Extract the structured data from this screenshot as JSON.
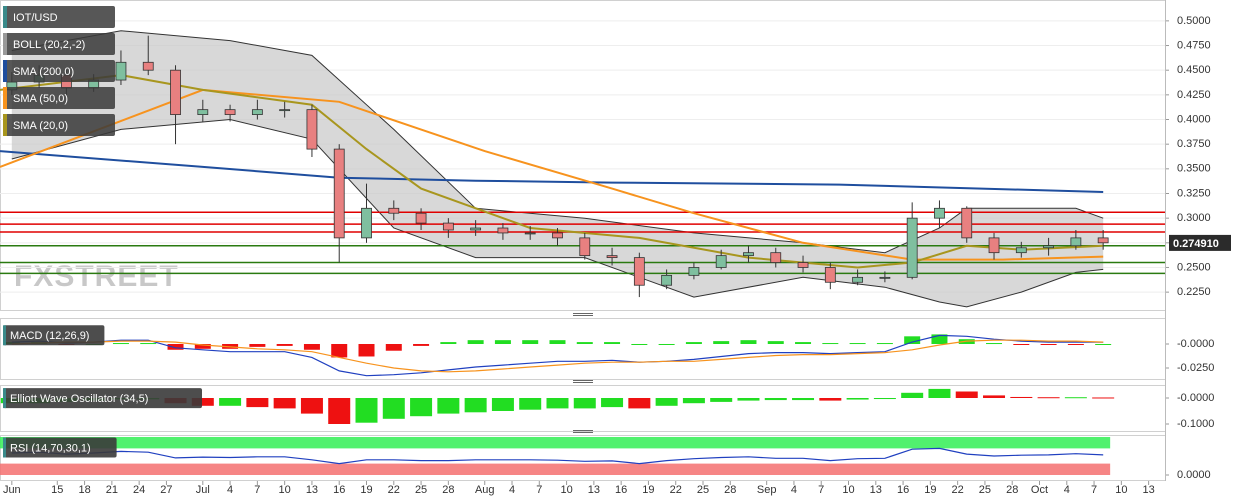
{
  "watermark": "FXSTREET",
  "chart_data": [
    {
      "type": "candlestick",
      "xlim": [
        7.7,
        135.8
      ],
      "xticks": [
        {
          "value": 9,
          "label": "Jun"
        },
        {
          "value": 14,
          "label": "15"
        },
        {
          "value": 17,
          "label": "18"
        },
        {
          "value": 20,
          "label": "21"
        },
        {
          "value": 23,
          "label": "24"
        },
        {
          "value": 26,
          "label": "27"
        },
        {
          "value": 30,
          "label": "Jul"
        },
        {
          "value": 33,
          "label": "4"
        },
        {
          "value": 36,
          "label": "7"
        },
        {
          "value": 39,
          "label": "10"
        },
        {
          "value": 42,
          "label": "13"
        },
        {
          "value": 45,
          "label": "16"
        },
        {
          "value": 48,
          "label": "19"
        },
        {
          "value": 51,
          "label": "22"
        },
        {
          "value": 54,
          "label": "25"
        },
        {
          "value": 57,
          "label": "28"
        },
        {
          "value": 61,
          "label": "Aug"
        },
        {
          "value": 64,
          "label": "4"
        },
        {
          "value": 67,
          "label": "7"
        },
        {
          "value": 70,
          "label": "10"
        },
        {
          "value": 73,
          "label": "13"
        },
        {
          "value": 76,
          "label": "16"
        },
        {
          "value": 79,
          "label": "19"
        },
        {
          "value": 82,
          "label": "22"
        },
        {
          "value": 85,
          "label": "25"
        },
        {
          "value": 88,
          "label": "28"
        },
        {
          "value": 92,
          "label": "Sep"
        },
        {
          "value": 95,
          "label": "4"
        },
        {
          "value": 98,
          "label": "7"
        },
        {
          "value": 101,
          "label": "10"
        },
        {
          "value": 104,
          "label": "13"
        },
        {
          "value": 107,
          "label": "16"
        },
        {
          "value": 110,
          "label": "19"
        },
        {
          "value": 113,
          "label": "22"
        },
        {
          "value": 116,
          "label": "25"
        },
        {
          "value": 119,
          "label": "28"
        },
        {
          "value": 122,
          "label": "Oct"
        },
        {
          "value": 125,
          "label": "4"
        },
        {
          "value": 128,
          "label": "7"
        },
        {
          "value": 131,
          "label": "10"
        },
        {
          "value": 134,
          "label": "13"
        }
      ],
      "ylim": [
        0.215,
        0.51
      ],
      "yticks": [
        {
          "value": 0.5,
          "label": "0.5000"
        },
        {
          "value": 0.475,
          "label": "0.4750"
        },
        {
          "value": 0.45,
          "label": "0.4500"
        },
        {
          "value": 0.425,
          "label": "0.4250"
        },
        {
          "value": 0.4,
          "label": "0.4000"
        },
        {
          "value": 0.375,
          "label": "0.3750"
        },
        {
          "value": 0.35,
          "label": "0.3500"
        },
        {
          "value": 0.325,
          "label": "0.3250"
        },
        {
          "value": 0.3,
          "label": "0.3000"
        },
        {
          "value": 0.275,
          "label": "0.2750"
        },
        {
          "value": 0.25,
          "label": "0.2500"
        },
        {
          "value": 0.225,
          "label": "0.2250"
        }
      ],
      "candles": {
        "name": "IOT/USD",
        "color": "#3a8a8a",
        "up_color": "#7fbf9f",
        "down_color": "#e88080",
        "x": [
          9,
          12,
          15,
          18,
          21,
          24,
          27,
          30,
          33,
          36,
          39,
          42,
          45,
          48,
          51,
          54,
          57,
          60,
          63,
          66,
          69,
          72,
          75,
          78,
          81,
          84,
          87,
          90,
          93,
          96,
          99,
          102,
          105,
          108,
          111,
          114,
          117,
          120,
          123,
          126,
          129
        ],
        "open": [
          0.43,
          0.438,
          0.445,
          0.432,
          0.44,
          0.458,
          0.45,
          0.405,
          0.41,
          0.405,
          0.41,
          0.41,
          0.37,
          0.28,
          0.31,
          0.305,
          0.295,
          0.288,
          0.29,
          0.285,
          0.285,
          0.28,
          0.262,
          0.26,
          0.232,
          0.242,
          0.25,
          0.262,
          0.265,
          0.255,
          0.25,
          0.235,
          0.24,
          0.24,
          0.3,
          0.31,
          0.28,
          0.265,
          0.27,
          0.272,
          0.28
        ],
        "high": [
          0.448,
          0.455,
          0.45,
          0.446,
          0.47,
          0.485,
          0.455,
          0.42,
          0.415,
          0.42,
          0.418,
          0.415,
          0.375,
          0.335,
          0.318,
          0.31,
          0.3,
          0.298,
          0.295,
          0.292,
          0.29,
          0.285,
          0.27,
          0.265,
          0.248,
          0.255,
          0.268,
          0.272,
          0.27,
          0.262,
          0.255,
          0.248,
          0.246,
          0.316,
          0.318,
          0.312,
          0.285,
          0.276,
          0.28,
          0.288,
          0.288
        ],
        "low": [
          0.425,
          0.432,
          0.425,
          0.428,
          0.435,
          0.445,
          0.375,
          0.398,
          0.398,
          0.4,
          0.402,
          0.362,
          0.255,
          0.275,
          0.298,
          0.288,
          0.28,
          0.282,
          0.278,
          0.278,
          0.272,
          0.258,
          0.252,
          0.22,
          0.228,
          0.238,
          0.248,
          0.255,
          0.25,
          0.245,
          0.228,
          0.232,
          0.235,
          0.238,
          0.29,
          0.275,
          0.258,
          0.26,
          0.262,
          0.268,
          0.268
        ],
        "close": [
          0.438,
          0.445,
          0.432,
          0.44,
          0.458,
          0.45,
          0.405,
          0.41,
          0.405,
          0.41,
          0.41,
          0.37,
          0.28,
          0.31,
          0.305,
          0.295,
          0.288,
          0.29,
          0.285,
          0.285,
          0.28,
          0.262,
          0.26,
          0.232,
          0.242,
          0.25,
          0.262,
          0.265,
          0.255,
          0.25,
          0.235,
          0.24,
          0.24,
          0.3,
          0.31,
          0.28,
          0.265,
          0.27,
          0.272,
          0.28,
          0.275
        ]
      },
      "bands": {
        "name": "BOLL (20,2,-2)",
        "color": "#999999",
        "x": [
          9,
          21,
          33,
          42,
          51,
          60,
          72,
          84,
          96,
          105,
          111,
          114,
          120,
          126,
          129
        ],
        "upper": [
          0.47,
          0.49,
          0.48,
          0.465,
          0.39,
          0.31,
          0.3,
          0.285,
          0.275,
          0.265,
          0.29,
          0.31,
          0.31,
          0.31,
          0.3
        ],
        "lower": [
          0.36,
          0.39,
          0.4,
          0.38,
          0.29,
          0.26,
          0.26,
          0.22,
          0.24,
          0.23,
          0.215,
          0.21,
          0.225,
          0.245,
          0.248
        ]
      },
      "series": [
        {
          "name": "SMA (200,0)",
          "color": "#1f4e9e",
          "x": [
            7.7,
            30,
            45,
            60,
            75,
            100,
            129
          ],
          "values": [
            0.368,
            0.352,
            0.341,
            0.338,
            0.336,
            0.334,
            0.3265
          ]
        },
        {
          "name": "SMA (50,0)",
          "color": "#f7931e",
          "x": [
            7.7,
            20,
            30,
            45,
            61,
            75,
            84,
            96,
            108,
            118,
            129
          ],
          "values": [
            0.352,
            0.395,
            0.43,
            0.418,
            0.368,
            0.33,
            0.305,
            0.275,
            0.258,
            0.258,
            0.261
          ]
        },
        {
          "name": "SMA (20,0)",
          "color": "#a8961e",
          "x": [
            7.7,
            21,
            30,
            42,
            48,
            54,
            66,
            78,
            90,
            102,
            108,
            114,
            120,
            129
          ],
          "values": [
            0.43,
            0.445,
            0.43,
            0.415,
            0.37,
            0.33,
            0.29,
            0.28,
            0.26,
            0.25,
            0.255,
            0.272,
            0.268,
            0.272
          ]
        }
      ],
      "levels": [
        {
          "value": 0.306,
          "color": "#e00000"
        },
        {
          "value": 0.294,
          "color": "#e00000"
        },
        {
          "value": 0.286,
          "color": "#e00000"
        },
        {
          "value": 0.272,
          "color": "#2a7a10"
        },
        {
          "value": 0.255,
          "color": "#2a7a10"
        },
        {
          "value": 0.244,
          "color": "#2a7a10"
        }
      ],
      "last_price": {
        "value": 0.27491,
        "label": "0.274910"
      }
    },
    {
      "type": "macd",
      "title": "MACD (12,26,9)",
      "ylim": [
        -0.035,
        0.02
      ],
      "yticks": [
        {
          "value": 0,
          "label": "-0.0000"
        },
        {
          "value": -0.025,
          "label": "-0.0250"
        }
      ],
      "series": [
        {
          "name": "MACD",
          "color": "#2040c0",
          "values": [
            0.002,
            0.003,
            0.001,
            0.002,
            0.004,
            0.004,
            -0.004,
            -0.006,
            -0.008,
            -0.008,
            -0.008,
            -0.014,
            -0.028,
            -0.033,
            -0.032,
            -0.03,
            -0.027,
            -0.024,
            -0.022,
            -0.02,
            -0.018,
            -0.018,
            -0.017,
            -0.019,
            -0.018,
            -0.016,
            -0.013,
            -0.01,
            -0.009,
            -0.009,
            -0.01,
            -0.009,
            -0.008,
            0.002,
            0.009,
            0.008,
            0.005,
            0.003,
            0.002,
            0.002,
            0.002
          ]
        },
        {
          "name": "Signal",
          "color": "#f7931e",
          "values": [
            0,
            0.001,
            0.002,
            0.002,
            0.003,
            0.003,
            0.002,
            -0.001,
            -0.003,
            -0.005,
            -0.006,
            -0.008,
            -0.014,
            -0.02,
            -0.025,
            -0.028,
            -0.029,
            -0.028,
            -0.026,
            -0.024,
            -0.022,
            -0.02,
            -0.019,
            -0.019,
            -0.018,
            -0.018,
            -0.016,
            -0.014,
            -0.012,
            -0.011,
            -0.011,
            -0.01,
            -0.009,
            -0.006,
            -0.001,
            0.003,
            0.004,
            0.004,
            0.003,
            0.003,
            0.002
          ]
        }
      ],
      "histogram": [
        0.002,
        0.002,
        -0.001,
        0,
        0.001,
        0.001,
        -0.006,
        -0.005,
        -0.005,
        -0.003,
        -0.002,
        -0.006,
        -0.014,
        -0.013,
        -0.007,
        -0.002,
        0.002,
        0.004,
        0.004,
        0.004,
        0.004,
        0.002,
        0.002,
        0,
        0,
        0.002,
        0.003,
        0.004,
        0.003,
        0.002,
        0.001,
        0.001,
        0.001,
        0.008,
        0.01,
        0.005,
        0.001,
        -0.001,
        -0.001,
        -0.001,
        0
      ]
    },
    {
      "type": "bar",
      "title": "Elliott Wave Oscillator (34,5)",
      "ylim": [
        -0.12,
        0.04
      ],
      "yticks": [
        {
          "value": 0,
          "label": "-0.0000"
        },
        {
          "value": -0.1,
          "label": "-0.1000"
        }
      ],
      "values": [
        -0.02,
        -0.02,
        -0.015,
        -0.01,
        -0.005,
        -0.005,
        -0.02,
        -0.03,
        -0.03,
        -0.035,
        -0.04,
        -0.06,
        -0.1,
        -0.095,
        -0.08,
        -0.07,
        -0.06,
        -0.055,
        -0.05,
        -0.045,
        -0.04,
        -0.04,
        -0.035,
        -0.04,
        -0.03,
        -0.02,
        -0.015,
        -0.01,
        -0.008,
        -0.008,
        -0.01,
        -0.006,
        -0.004,
        0.02,
        0.035,
        0.025,
        0.01,
        0.004,
        0.003,
        0.003,
        0.002
      ]
    },
    {
      "type": "line",
      "title": "RSI (14,70,30,1)",
      "color": "#2040c0",
      "ylim": [
        0,
        100
      ],
      "yticks": [
        {
          "value": 0,
          "label": "0.0000"
        }
      ],
      "overbought": 70,
      "oversold": 30,
      "values": [
        58,
        60,
        55,
        58,
        62,
        60,
        45,
        47,
        46,
        48,
        48,
        40,
        30,
        40,
        40,
        38,
        38,
        40,
        40,
        40,
        39,
        36,
        37,
        30,
        38,
        43,
        46,
        48,
        44,
        44,
        38,
        43,
        44,
        68,
        70,
        55,
        50,
        52,
        53,
        56,
        53
      ]
    }
  ]
}
